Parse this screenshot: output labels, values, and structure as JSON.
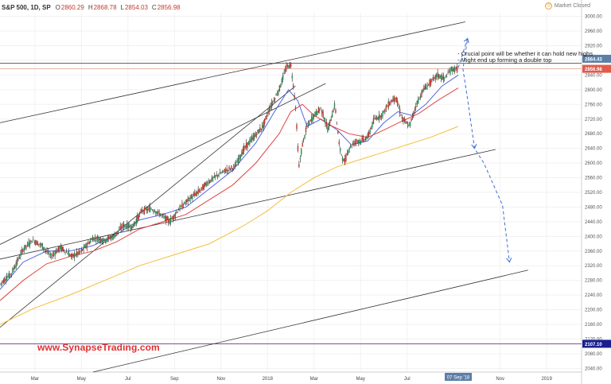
{
  "header": {
    "symbol": "S&P 500, 1D, SP",
    "open_label": "O",
    "open": "2860.29",
    "high_label": "H",
    "high": "2868.78",
    "low_label": "L",
    "low": "2854.03",
    "close_label": "C",
    "close": "2856.98",
    "market_status": "Market Closed"
  },
  "watermark": "www.SynapseTrading.com",
  "annotations": [
    "- Crucial point will be whether it can hold new highs",
    "- Might end up forming a double top"
  ],
  "chart_data": {
    "type": "candlestick",
    "title": "",
    "xlabel": "",
    "ylabel": "",
    "ylim": [
      2030,
      3010
    ],
    "y_ticks": [
      3000,
      2960,
      2920,
      2880,
      2840,
      2800,
      2760,
      2720,
      2680,
      2640,
      2600,
      2560,
      2520,
      2480,
      2440,
      2400,
      2360,
      2320,
      2280,
      2240,
      2200,
      2160,
      2120,
      2080,
      2040
    ],
    "y_tick_labels": [
      "3000.00",
      "2960.00",
      "2920.00",
      "2880.00",
      "2840.00",
      "2800.00",
      "2760.00",
      "2720.00",
      "2680.00",
      "2640.00",
      "2600.00",
      "2560.00",
      "2520.00",
      "2480.00",
      "2440.00",
      "2400.00",
      "2360.00",
      "2320.00",
      "2280.00",
      "2240.00",
      "2200.00",
      "2160.00",
      "2120.00",
      "2080.00",
      "2040.00"
    ],
    "x_ticks": [
      {
        "label": "Mar",
        "m": 2
      },
      {
        "label": "May",
        "m": 4
      },
      {
        "label": "Jul",
        "m": 6
      },
      {
        "label": "Sep",
        "m": 8
      },
      {
        "label": "Nov",
        "m": 10
      },
      {
        "label": "2018",
        "m": 12
      },
      {
        "label": "Mar",
        "m": 14
      },
      {
        "label": "May",
        "m": 16
      },
      {
        "label": "Jul",
        "m": 18
      },
      {
        "label": "Nov",
        "m": 22
      },
      {
        "label": "2019",
        "m": 24
      }
    ],
    "x_range_months": [
      0.5,
      25.5
    ],
    "current_date_label": "07 Sep '18",
    "current_date_m": 20.2,
    "price_tags": [
      {
        "value": 2884.43,
        "label": "2884.43",
        "color": "#5b7fa6"
      },
      {
        "value": 2856.98,
        "label": "2856.98",
        "color": "#e25b4c"
      },
      {
        "value": 2107.1,
        "label": "2107.10",
        "color": "#1a1f8f"
      }
    ],
    "horizontal_lines": [
      {
        "value": 2872,
        "color": "#333333"
      },
      {
        "value": 2856.98,
        "color": "#e6a8a0"
      },
      {
        "value": 2107.1,
        "color": "#6b3a7a"
      }
    ],
    "price_path": [
      [
        0.5,
        2270
      ],
      [
        1.0,
        2300
      ],
      [
        1.5,
        2365
      ],
      [
        1.9,
        2390
      ],
      [
        2.3,
        2375
      ],
      [
        2.7,
        2345
      ],
      [
        3.1,
        2370
      ],
      [
        3.6,
        2345
      ],
      [
        4.0,
        2360
      ],
      [
        4.5,
        2395
      ],
      [
        5.0,
        2390
      ],
      [
        5.4,
        2400
      ],
      [
        5.8,
        2430
      ],
      [
        6.2,
        2425
      ],
      [
        6.6,
        2470
      ],
      [
        7.0,
        2475
      ],
      [
        7.4,
        2460
      ],
      [
        7.8,
        2440
      ],
      [
        8.2,
        2475
      ],
      [
        8.6,
        2500
      ],
      [
        9.0,
        2520
      ],
      [
        9.4,
        2545
      ],
      [
        9.8,
        2565
      ],
      [
        10.2,
        2580
      ],
      [
        10.6,
        2590
      ],
      [
        11.0,
        2640
      ],
      [
        11.4,
        2670
      ],
      [
        11.8,
        2700
      ],
      [
        12.1,
        2750
      ],
      [
        12.5,
        2800
      ],
      [
        12.8,
        2860
      ],
      [
        13.0,
        2870
      ],
      [
        13.2,
        2760
      ],
      [
        13.35,
        2590
      ],
      [
        13.5,
        2650
      ],
      [
        13.7,
        2700
      ],
      [
        14.0,
        2730
      ],
      [
        14.3,
        2750
      ],
      [
        14.6,
        2690
      ],
      [
        14.9,
        2760
      ],
      [
        15.1,
        2640
      ],
      [
        15.3,
        2600
      ],
      [
        15.5,
        2640
      ],
      [
        15.8,
        2660
      ],
      [
        16.0,
        2660
      ],
      [
        16.3,
        2670
      ],
      [
        16.6,
        2720
      ],
      [
        16.9,
        2730
      ],
      [
        17.2,
        2760
      ],
      [
        17.5,
        2780
      ],
      [
        17.8,
        2720
      ],
      [
        18.1,
        2700
      ],
      [
        18.4,
        2760
      ],
      [
        18.7,
        2800
      ],
      [
        19.0,
        2820
      ],
      [
        19.3,
        2840
      ],
      [
        19.6,
        2830
      ],
      [
        19.9,
        2855
      ],
      [
        20.2,
        2857
      ]
    ],
    "series": [
      {
        "name": "",
        "kind": "ma-fast",
        "color": "#4f64e0",
        "points": [
          [
            0.5,
            2255
          ],
          [
            1.5,
            2330
          ],
          [
            2.5,
            2360
          ],
          [
            3.5,
            2360
          ],
          [
            4.5,
            2375
          ],
          [
            5.5,
            2405
          ],
          [
            6.5,
            2445
          ],
          [
            7.5,
            2460
          ],
          [
            8.5,
            2480
          ],
          [
            9.5,
            2530
          ],
          [
            10.5,
            2580
          ],
          [
            11.5,
            2655
          ],
          [
            12.3,
            2740
          ],
          [
            12.9,
            2800
          ],
          [
            13.3,
            2770
          ],
          [
            13.7,
            2700
          ],
          [
            14.3,
            2720
          ],
          [
            15.0,
            2690
          ],
          [
            15.6,
            2650
          ],
          [
            16.3,
            2660
          ],
          [
            17.0,
            2710
          ],
          [
            17.6,
            2740
          ],
          [
            18.2,
            2730
          ],
          [
            18.8,
            2760
          ],
          [
            19.5,
            2810
          ],
          [
            20.2,
            2840
          ]
        ]
      },
      {
        "name": "",
        "kind": "ma-mid",
        "color": "#e04646",
        "points": [
          [
            0.5,
            2225
          ],
          [
            1.5,
            2280
          ],
          [
            2.5,
            2325
          ],
          [
            3.5,
            2345
          ],
          [
            4.5,
            2360
          ],
          [
            5.5,
            2385
          ],
          [
            6.5,
            2420
          ],
          [
            7.5,
            2440
          ],
          [
            8.5,
            2460
          ],
          [
            9.5,
            2500
          ],
          [
            10.5,
            2540
          ],
          [
            11.5,
            2600
          ],
          [
            12.5,
            2680
          ],
          [
            13.0,
            2740
          ],
          [
            13.5,
            2760
          ],
          [
            14.0,
            2730
          ],
          [
            14.8,
            2700
          ],
          [
            15.5,
            2680
          ],
          [
            16.3,
            2670
          ],
          [
            17.0,
            2690
          ],
          [
            17.8,
            2715
          ],
          [
            18.5,
            2735
          ],
          [
            19.3,
            2770
          ],
          [
            20.2,
            2805
          ]
        ]
      },
      {
        "name": "",
        "kind": "ma-slow",
        "color": "#f5be3c",
        "points": [
          [
            0.5,
            2160
          ],
          [
            2.0,
            2205
          ],
          [
            3.5,
            2240
          ],
          [
            5.0,
            2280
          ],
          [
            6.5,
            2320
          ],
          [
            8.0,
            2350
          ],
          [
            9.5,
            2380
          ],
          [
            11.0,
            2430
          ],
          [
            12.0,
            2470
          ],
          [
            13.0,
            2520
          ],
          [
            14.0,
            2560
          ],
          [
            15.0,
            2590
          ],
          [
            16.0,
            2610
          ],
          [
            17.0,
            2630
          ],
          [
            18.0,
            2650
          ],
          [
            19.0,
            2670
          ],
          [
            20.2,
            2700
          ]
        ]
      }
    ],
    "trendlines": [
      {
        "from": [
          0.5,
          2710
        ],
        "to": [
          20.5,
          2985
        ],
        "color": "#333333"
      },
      {
        "from": [
          0.5,
          2378
        ],
        "to": [
          14.5,
          2817
        ],
        "color": "#333333"
      },
      {
        "from": [
          0.5,
          2338
        ],
        "to": [
          21.8,
          2637
        ],
        "color": "#333333"
      },
      {
        "from": [
          0.5,
          2152
        ],
        "to": [
          13.2,
          2810
        ],
        "color": "#333333"
      },
      {
        "from": [
          4.5,
          2030
        ],
        "to": [
          23.2,
          2308
        ],
        "color": "#333333"
      }
    ],
    "projection": {
      "color": "#3b6fd6",
      "points": [
        [
          20.2,
          2860
        ],
        [
          20.6,
          2940
        ],
        [
          20.4,
          2856
        ],
        [
          20.6,
          2775
        ],
        [
          20.9,
          2640
        ],
        [
          21.3,
          2600
        ],
        [
          22.1,
          2485
        ],
        [
          22.4,
          2330
        ]
      ]
    }
  }
}
